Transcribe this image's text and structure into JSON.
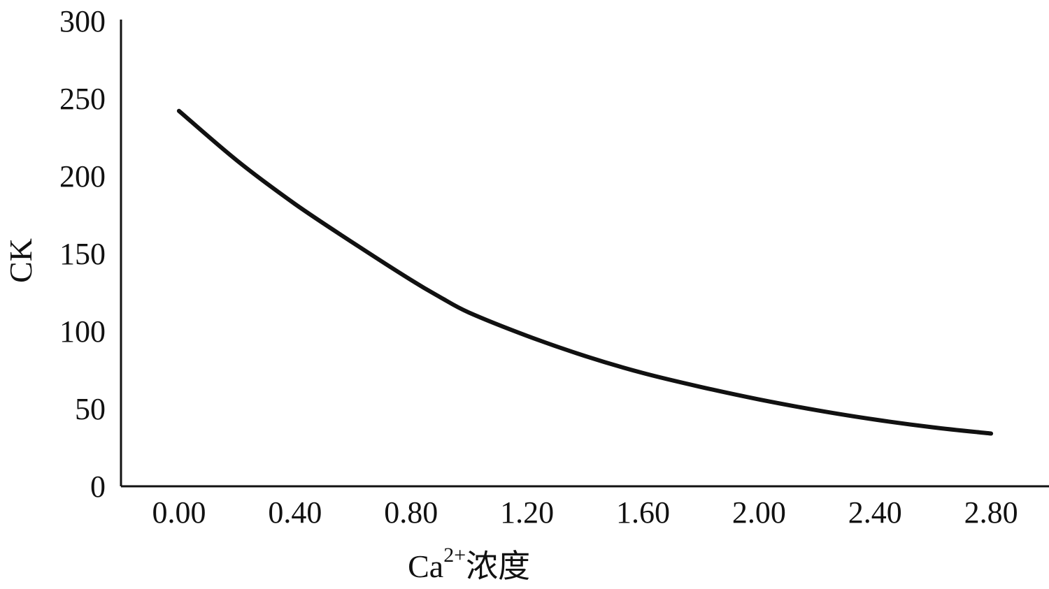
{
  "chart_data": {
    "type": "line",
    "title": "",
    "xlabel": {
      "main": "Ca",
      "superscript": "2+",
      "suffix": "浓度"
    },
    "ylabel": "CK",
    "xlim": [
      -0.2,
      3.0
    ],
    "ylim": [
      0,
      300
    ],
    "x_ticks": [
      "0.00",
      "0.40",
      "0.80",
      "1.20",
      "1.60",
      "2.00",
      "2.40",
      "2.80"
    ],
    "y_ticks": [
      "0",
      "50",
      "100",
      "150",
      "200",
      "250",
      "300"
    ],
    "grid": false,
    "legend": "none",
    "series": [
      {
        "color": "#111111",
        "x": [
          0.0,
          0.2,
          0.4,
          0.6,
          0.8,
          0.9,
          1.0,
          1.2,
          1.4,
          1.6,
          1.8,
          2.0,
          2.2,
          2.4,
          2.6,
          2.8
        ],
        "y": [
          242,
          210,
          182,
          157,
          133,
          122,
          112,
          97,
          84,
          73,
          64,
          56,
          49,
          43,
          38,
          34
        ]
      }
    ]
  }
}
